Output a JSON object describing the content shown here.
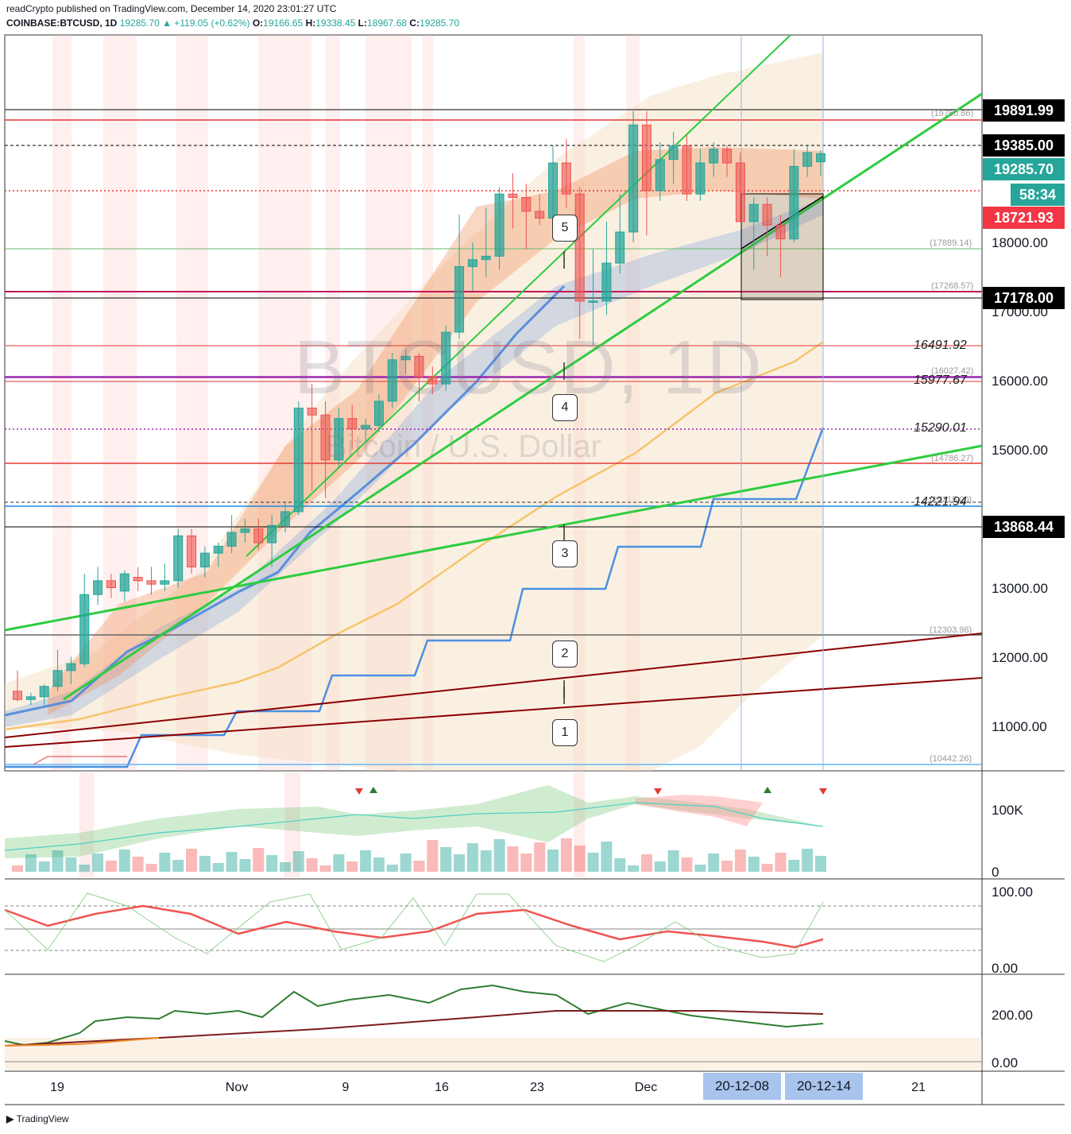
{
  "header": {
    "line1": "readCrypto published on TradingView.com, December 14, 2020 23:01:27 UTC",
    "symbol": "COINBASE:BTCUSD, 1D",
    "last": "19285.70",
    "change": "▲ +119.05 (+0.62%)",
    "o_label": "O:",
    "o": "19166.65",
    "h_label": "H:",
    "h": "19338.45",
    "l_label": "L:",
    "l": "18967.68",
    "c_label": "C:",
    "c": "19285.70"
  },
  "watermark": {
    "title": "BTCUSD, 1D",
    "subtitle": "Bitcoin / U.S. Dollar"
  },
  "price_labels": [
    {
      "text": "19891.99",
      "price": 19891.99,
      "bg": "#000000"
    },
    {
      "text": "19385.00",
      "price": 19385.0,
      "bg": "#000000"
    },
    {
      "text": "19285.70",
      "price": 19285.7,
      "bg": "#26a69a"
    },
    {
      "text": "58:34",
      "price": 19000.0,
      "bg": "#26a69a"
    },
    {
      "text": "18721.93",
      "price": 18721.93,
      "bg": "#f23645"
    },
    {
      "text": "17178.00",
      "price": 17178.0,
      "bg": "#000000"
    },
    {
      "text": "13868.44",
      "price": 13868.44,
      "bg": "#000000"
    }
  ],
  "axis_labels": [
    "18000.00",
    "17000.00",
    "16000.00",
    "15000.00",
    "13000.00",
    "12000.00",
    "11000.00"
  ],
  "volume_axis": [
    "100K",
    "0"
  ],
  "osc1_axis": [
    "100.00",
    "0.00"
  ],
  "osc2_axis": [
    "200.00",
    "0.00"
  ],
  "x_labels": [
    "19",
    "Nov",
    "9",
    "16",
    "23",
    "Dec",
    "21"
  ],
  "x_boxes": [
    "20-12-08",
    "20-12-14"
  ],
  "hlines_small": [
    {
      "text": "(19750.86)",
      "price": 19750.86,
      "color": "#e53935"
    },
    {
      "text": "(17889.14)",
      "price": 17889.14,
      "color": "#66bb6a"
    },
    {
      "text": "(17268.57)",
      "price": 17268.57,
      "color": "#c2185b"
    },
    {
      "text": "(16027.42)",
      "price": 16027.42,
      "color": "#9c27b0"
    },
    {
      "text": "(14786.27)",
      "price": 14786.27,
      "color": "#e53935"
    },
    {
      "text": "(14215.00)",
      "price": 14215.0,
      "color": "#1e88e5"
    },
    {
      "text": "(12303.98)",
      "price": 12303.98,
      "color": "#666666"
    },
    {
      "text": "(10442.26)",
      "price": 10442.26,
      "color": "#64b5f6"
    }
  ],
  "hlines_italic": [
    {
      "text": "16491.92",
      "price": 16491.92
    },
    {
      "text": "15977.67",
      "price": 15977.67
    },
    {
      "text": "15290.01",
      "price": 15290.01
    },
    {
      "text": "14221.94",
      "price": 14221.94
    }
  ],
  "callouts": [
    "1",
    "2",
    "3",
    "4",
    "5"
  ],
  "branding": "TradingView",
  "chart_data": {
    "type": "candlestick",
    "symbol": "BTCUSD",
    "interval": "1D",
    "ylim": [
      10400,
      20600
    ],
    "candles": [
      {
        "o": 11500,
        "h": 11800,
        "l": 11350,
        "c": 11380
      },
      {
        "o": 11380,
        "h": 11480,
        "l": 11300,
        "c": 11420
      },
      {
        "o": 11420,
        "h": 11600,
        "l": 11300,
        "c": 11570
      },
      {
        "o": 11570,
        "h": 12100,
        "l": 11500,
        "c": 11800
      },
      {
        "o": 11800,
        "h": 12000,
        "l": 11600,
        "c": 11900
      },
      {
        "o": 11900,
        "h": 13200,
        "l": 11850,
        "c": 12900
      },
      {
        "o": 12900,
        "h": 13300,
        "l": 12750,
        "c": 13100
      },
      {
        "o": 13100,
        "h": 13200,
        "l": 12850,
        "c": 13000
      },
      {
        "o": 12950,
        "h": 13250,
        "l": 12800,
        "c": 13200
      },
      {
        "o": 13150,
        "h": 13300,
        "l": 12950,
        "c": 13100
      },
      {
        "o": 13100,
        "h": 13300,
        "l": 12900,
        "c": 13050
      },
      {
        "o": 13050,
        "h": 13350,
        "l": 12950,
        "c": 13100
      },
      {
        "o": 13100,
        "h": 13850,
        "l": 13000,
        "c": 13750
      },
      {
        "o": 13750,
        "h": 13850,
        "l": 13200,
        "c": 13300
      },
      {
        "o": 13300,
        "h": 13600,
        "l": 13150,
        "c": 13500
      },
      {
        "o": 13500,
        "h": 13650,
        "l": 13300,
        "c": 13600
      },
      {
        "o": 13600,
        "h": 14050,
        "l": 13500,
        "c": 13800
      },
      {
        "o": 13800,
        "h": 14000,
        "l": 13650,
        "c": 13850
      },
      {
        "o": 13850,
        "h": 14000,
        "l": 13550,
        "c": 13650
      },
      {
        "o": 13650,
        "h": 14050,
        "l": 13300,
        "c": 13900
      },
      {
        "o": 13900,
        "h": 14250,
        "l": 13800,
        "c": 14100
      },
      {
        "o": 14100,
        "h": 15700,
        "l": 14050,
        "c": 15600
      },
      {
        "o": 15600,
        "h": 15950,
        "l": 14400,
        "c": 15500
      },
      {
        "o": 15500,
        "h": 15700,
        "l": 14300,
        "c": 14850
      },
      {
        "o": 14850,
        "h": 15600,
        "l": 14750,
        "c": 15450
      },
      {
        "o": 15450,
        "h": 15650,
        "l": 15000,
        "c": 15300
      },
      {
        "o": 15300,
        "h": 15450,
        "l": 15100,
        "c": 15350
      },
      {
        "o": 15350,
        "h": 15800,
        "l": 15250,
        "c": 15700
      },
      {
        "o": 15700,
        "h": 16400,
        "l": 15600,
        "c": 16300
      },
      {
        "o": 16300,
        "h": 16450,
        "l": 16100,
        "c": 16350
      },
      {
        "o": 16350,
        "h": 16400,
        "l": 15700,
        "c": 16050
      },
      {
        "o": 16050,
        "h": 16200,
        "l": 15800,
        "c": 15950
      },
      {
        "o": 15950,
        "h": 16800,
        "l": 15850,
        "c": 16700
      },
      {
        "o": 16700,
        "h": 18400,
        "l": 16600,
        "c": 17650
      },
      {
        "o": 17650,
        "h": 18000,
        "l": 17300,
        "c": 17750
      },
      {
        "o": 17750,
        "h": 18500,
        "l": 17500,
        "c": 17800
      },
      {
        "o": 17800,
        "h": 18800,
        "l": 17600,
        "c": 18700
      },
      {
        "o": 18700,
        "h": 19000,
        "l": 18200,
        "c": 18650
      },
      {
        "o": 18650,
        "h": 18850,
        "l": 17900,
        "c": 18450
      },
      {
        "o": 18450,
        "h": 18700,
        "l": 18250,
        "c": 18350
      },
      {
        "o": 18350,
        "h": 19400,
        "l": 18300,
        "c": 19150
      },
      {
        "o": 19150,
        "h": 19500,
        "l": 18500,
        "c": 18700
      },
      {
        "o": 18700,
        "h": 18800,
        "l": 16600,
        "c": 17150
      },
      {
        "o": 17150,
        "h": 17900,
        "l": 16500,
        "c": 17150
      },
      {
        "o": 17150,
        "h": 18300,
        "l": 16950,
        "c": 17700
      },
      {
        "o": 17700,
        "h": 18700,
        "l": 17550,
        "c": 18150
      },
      {
        "o": 18150,
        "h": 19900,
        "l": 18000,
        "c": 19700
      },
      {
        "o": 19700,
        "h": 19900,
        "l": 18100,
        "c": 18750
      },
      {
        "o": 18750,
        "h": 19450,
        "l": 18600,
        "c": 19200
      },
      {
        "o": 19200,
        "h": 19600,
        "l": 18850,
        "c": 19400
      },
      {
        "o": 19400,
        "h": 19550,
        "l": 18600,
        "c": 18700
      },
      {
        "o": 18700,
        "h": 19350,
        "l": 18600,
        "c": 19150
      },
      {
        "o": 19150,
        "h": 19450,
        "l": 18950,
        "c": 19350
      },
      {
        "o": 19350,
        "h": 19400,
        "l": 18950,
        "c": 19150
      },
      {
        "o": 19150,
        "h": 19300,
        "l": 18300,
        "c": 18300
      },
      {
        "o": 18300,
        "h": 18650,
        "l": 17600,
        "c": 18550
      },
      {
        "o": 18550,
        "h": 18650,
        "l": 17800,
        "c": 18250
      },
      {
        "o": 18250,
        "h": 18400,
        "l": 17500,
        "c": 18050
      },
      {
        "o": 18050,
        "h": 19350,
        "l": 18000,
        "c": 19100
      },
      {
        "o": 19100,
        "h": 19400,
        "l": 18950,
        "c": 19300
      },
      {
        "o": 19166.65,
        "h": 19338.45,
        "l": 18967.68,
        "c": 19285.7
      }
    ]
  }
}
